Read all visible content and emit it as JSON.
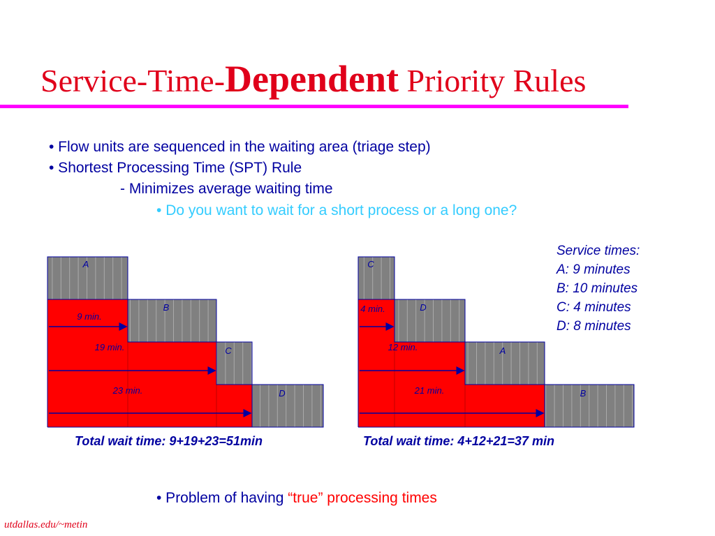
{
  "title": {
    "part1": "Service-Time-",
    "part2": "Dependent",
    "part3": " Priority Rules"
  },
  "bullets": {
    "b1": "• Flow units are sequenced in the waiting area (triage step)",
    "b2": "• Shortest Processing Time (SPT) Rule",
    "b3": "- Minimizes average waiting time",
    "b4_bullet": "• ",
    "b4_text": "Do you want to wait for a short process or a long one?"
  },
  "service_times": {
    "heading": "Service times:",
    "a": "A: 9 minutes",
    "b": "B: 10 minutes",
    "c": "C: 4 minutes",
    "d": "D: 8 minutes"
  },
  "left_diagram": {
    "jobs": [
      "A",
      "B",
      "C",
      "D"
    ],
    "waits": [
      "9 min.",
      "19 min.",
      "23 min."
    ],
    "total": "Total wait time: 9+19+23=51min"
  },
  "right_diagram": {
    "jobs": [
      "C",
      "D",
      "A",
      "B"
    ],
    "waits": [
      "4 min.",
      "12 min.",
      "21 min."
    ],
    "total": "Total wait time: 4+12+21=37 min"
  },
  "problem": {
    "bullet": "• Problem of having ",
    "highlight": "“true” processing times"
  },
  "footer": "utdallas.edu/~metin",
  "colors": {
    "title": "#e0001a",
    "rule": "#ff00ff",
    "text": "#0000a0",
    "highlight": "#33ccff",
    "wait": "#ff0000",
    "service": "#808080"
  }
}
